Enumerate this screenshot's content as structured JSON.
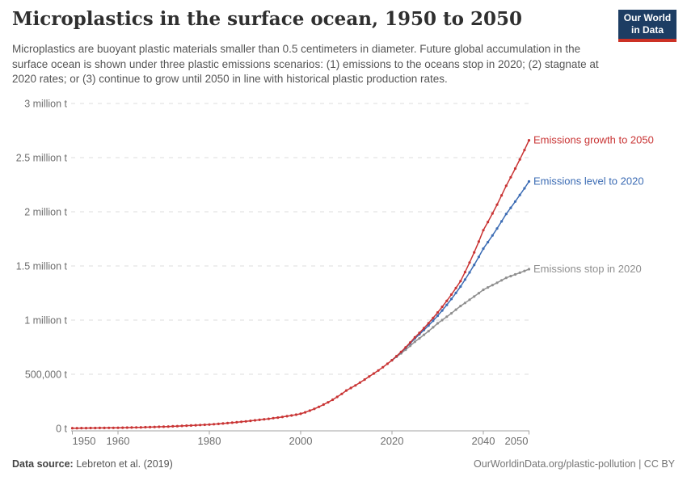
{
  "header": {
    "title": "Microplastics in the surface ocean, 1950 to 2050",
    "subtitle": "Microplastics are buoyant plastic materials smaller than 0.5 centimeters in diameter. Future global accumulation in the surface ocean is shown under three plastic emissions scenarios: (1) emissions to the oceans stop in 2020; (2) stagnate at 2020 rates; or (3) continue to grow until 2050 in line with historical plastic production rates.",
    "logo": {
      "line1": "Our World",
      "line2": "in Data",
      "bg_color": "#1d3d63",
      "stripe_color": "#cc3125"
    }
  },
  "chart_data": {
    "type": "line",
    "title": "Microplastics in the surface ocean, 1950 to 2050",
    "unit": "tonnes",
    "xlim": [
      1950,
      2050
    ],
    "ylim_million_t": [
      0,
      3
    ],
    "grid": "dashed-horizontal",
    "marker": "circle-every-year",
    "legend_position": "labels-at-line-ends",
    "x_ticks": [
      1950,
      1960,
      1980,
      2000,
      2020,
      2040,
      2050
    ],
    "y_ticks": [
      {
        "value_million_t": 0,
        "label": "0 t"
      },
      {
        "value_million_t": 0.5,
        "label": "500,000 t"
      },
      {
        "value_million_t": 1,
        "label": "1 million t"
      },
      {
        "value_million_t": 1.5,
        "label": "1.5 million t"
      },
      {
        "value_million_t": 2,
        "label": "2 million t"
      },
      {
        "value_million_t": 2.5,
        "label": "2.5 million t"
      },
      {
        "value_million_t": 3,
        "label": "3 million t"
      }
    ],
    "series": [
      {
        "name": "Emissions growth to 2050",
        "color": "#c93434",
        "points_million_t": [
          [
            1950,
            0.002
          ],
          [
            1955,
            0.004
          ],
          [
            1960,
            0.006
          ],
          [
            1965,
            0.01
          ],
          [
            1970,
            0.016
          ],
          [
            1975,
            0.025
          ],
          [
            1980,
            0.036
          ],
          [
            1985,
            0.053
          ],
          [
            1990,
            0.075
          ],
          [
            1995,
            0.1
          ],
          [
            2000,
            0.135
          ],
          [
            2005,
            0.22
          ],
          [
            2010,
            0.35
          ],
          [
            2015,
            0.48
          ],
          [
            2020,
            0.63
          ],
          [
            2025,
            0.84
          ],
          [
            2030,
            1.07
          ],
          [
            2035,
            1.36
          ],
          [
            2040,
            1.83
          ],
          [
            2045,
            2.24
          ],
          [
            2050,
            2.66
          ]
        ]
      },
      {
        "name": "Emissions level to 2020",
        "color": "#3c6cb4",
        "points_million_t": [
          [
            2020,
            0.63
          ],
          [
            2025,
            0.83
          ],
          [
            2030,
            1.04
          ],
          [
            2035,
            1.31
          ],
          [
            2040,
            1.66
          ],
          [
            2045,
            1.98
          ],
          [
            2050,
            2.28
          ]
        ]
      },
      {
        "name": "Emissions stop in 2020",
        "color": "#8f8f8f",
        "points_million_t": [
          [
            2020,
            0.63
          ],
          [
            2025,
            0.8
          ],
          [
            2030,
            0.97
          ],
          [
            2035,
            1.13
          ],
          [
            2040,
            1.28
          ],
          [
            2045,
            1.39
          ],
          [
            2050,
            1.47
          ]
        ]
      }
    ]
  },
  "footer": {
    "source_label": "Data source:",
    "source_value": " Lebreton et al. (2019)",
    "credit": "OurWorldinData.org/plastic-pollution | CC BY"
  }
}
